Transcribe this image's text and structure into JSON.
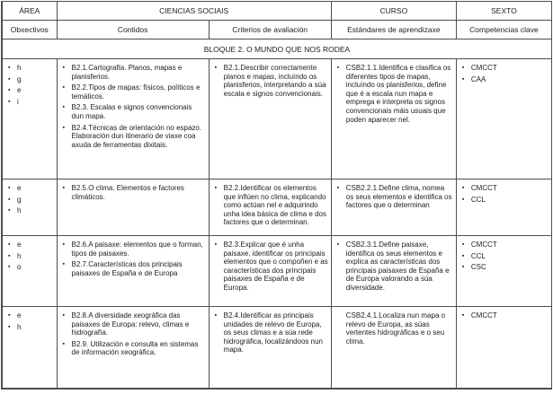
{
  "header": {
    "area": "ÁREA",
    "subject": "CIENCIAS SOCIAIS",
    "curso": "CURSO",
    "sexto": "SEXTO",
    "col_obxectivos": "Obxectivos",
    "col_contidos": "Contidos",
    "col_criterios": "Criterios de avaliación",
    "col_estandares": "Estándares de aprendizaxe",
    "col_competencias": "Competencias clave"
  },
  "bloque_title": "BLOQUE 2. O MUNDO QUE NOS RODEA",
  "icons": {
    "bullet": "▪"
  },
  "colors": {
    "border": "#4d4d4d",
    "text": "#1c1c1c",
    "background": "#ffffff"
  },
  "rows": [
    {
      "obxectivos": [
        "h",
        "g",
        "e",
        "i"
      ],
      "contidos": [
        "B2.1.Cartografía. Planos, mapas e planisferios.",
        "B2.2.Tipos de mapas: físicos, políticos e temáticos.",
        "B2.3. Escalas e signos convencionais dun mapa.",
        "B2.4.Técnicas de orientación no espazo. Elaboración dun itinerario de viaxe coa axuda de ferramentas dixitais."
      ],
      "criterios": [
        "B2.1.Describir correctamente planos e mapas, incluíndo os planisferios, interpretando a súa escala e signos convencionais."
      ],
      "estandares": [
        {
          "text": "CSB2.1.1.Identifica e clasifica os diferentes tipos de mapas, incluíndo os planisferios, define que é a escala nun mapa e emprega e interpreta os signos convencionais máis usuais que poden aparecer nel.",
          "bullet": true
        }
      ],
      "competencias": [
        "CMCCT",
        "CAA"
      ]
    },
    {
      "obxectivos": [
        "e",
        "g",
        "h"
      ],
      "contidos": [
        "B2.5.O clima. Elementos e factores climáticos."
      ],
      "criterios": [
        "B2.2.Identificar os elementos que inflúen no clima, explicando como actúan nel e adquirindo unha idea básica de clima e dos factores que o determinan."
      ],
      "estandares": [
        {
          "text": "CSB2.2.1.Define clima, nomea os seus elementos e identifica os factores que o determinan",
          "bullet": true
        }
      ],
      "competencias": [
        "CMCCT",
        "CCL"
      ]
    },
    {
      "obxectivos": [
        "e",
        "h",
        "o"
      ],
      "contidos": [
        "B2.6.A paisaxe: elementos que o forman, tipos de paisaxes.",
        "B2.7.Características dos principais paisaxes de España e de Europa"
      ],
      "criterios": [
        "B2.3.Explicar que é unha paisaxe, identificar os principais elementos que o compoñen e as características dos principais paisaxes de España e de Europa."
      ],
      "estandares": [
        {
          "text": "CSB2.3.1.Define paisaxe, identifica os seus elementos e explica as características dos principais paisaxes de España e de Europa valorando a súa diversidade.",
          "bullet": true
        }
      ],
      "competencias": [
        "CMCCT",
        "CCL",
        "CSC"
      ]
    },
    {
      "obxectivos": [
        "e",
        "h"
      ],
      "contidos": [
        "B2.8.A diversidade xeográfica das paisaxes de Europa: relevo, climas e hidrografía.",
        "B2.9. Utilización e consulta en sistemas de información xeográfica."
      ],
      "criterios": [
        "B2.4.Identificar as principais unidades de relevo de Europa, os seus climas e a súa rede hidrográfica, localizándoos nun mapa."
      ],
      "estandares": [
        {
          "text": "CSB2.4.1.Localiza nun mapa o relevo de Europa, as súas vertentes hidrográficas e o seu clima.",
          "bullet": false
        }
      ],
      "competencias": [
        "CMCCT"
      ]
    }
  ]
}
